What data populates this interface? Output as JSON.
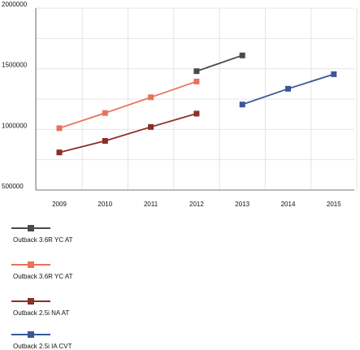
{
  "chart_data": {
    "type": "line",
    "x": [
      "2009",
      "2010",
      "2011",
      "2012",
      "2013",
      "2014",
      "2015"
    ],
    "ylim": [
      500000,
      2000000
    ],
    "yticks": [
      {
        "value": 500000,
        "label": "500000"
      },
      {
        "value": 1000000,
        "label": "1000000"
      },
      {
        "value": 1500000,
        "label": "1500000"
      },
      {
        "value": 2000000,
        "label": "2000000"
      }
    ],
    "grid": true,
    "legend_position": "bottom",
    "series": [
      {
        "name": "Outback 3.6R YC AT",
        "color": "#4a4a4a",
        "values": [
          null,
          null,
          null,
          1480000,
          1610000,
          null,
          null
        ]
      },
      {
        "name": "Outback 3.6R YC AT",
        "color": "#e8735a",
        "values": [
          1010000,
          1135000,
          1265000,
          1395000,
          null,
          null,
          null
        ]
      },
      {
        "name": "Outback 2.5i NA AT",
        "color": "#8c2f26",
        "values": [
          810000,
          905000,
          1020000,
          1130000,
          null,
          null,
          null
        ]
      },
      {
        "name": "Outback 2.5i IA CVT",
        "color": "#3a5796",
        "values": [
          null,
          null,
          null,
          null,
          1205000,
          1335000,
          1455000
        ]
      }
    ]
  }
}
